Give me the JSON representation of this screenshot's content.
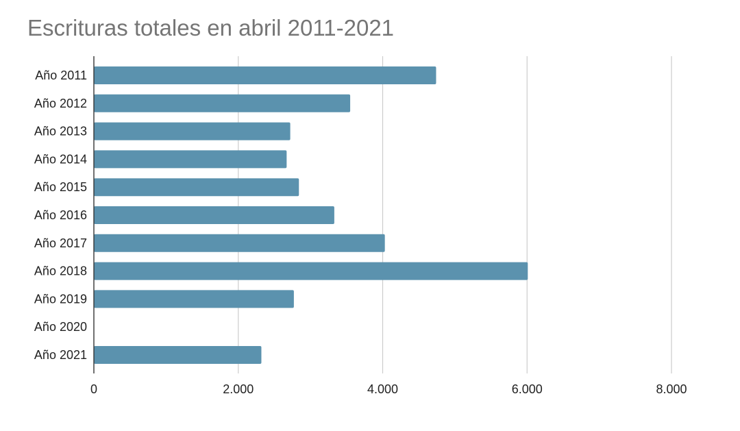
{
  "chart_data": {
    "type": "bar",
    "orientation": "horizontal",
    "title": "Escrituras totales en abril 2011-2021",
    "xlabel": "",
    "ylabel": "",
    "categories": [
      "Año 2011",
      "Año 2012",
      "Año 2013",
      "Año 2014",
      "Año 2015",
      "Año 2016",
      "Año 2017",
      "Año 2018",
      "Año 2019",
      "Año 2020",
      "Año 2021"
    ],
    "values": [
      4740,
      3550,
      2720,
      2670,
      2840,
      3330,
      4030,
      6010,
      2770,
      0,
      2320
    ],
    "xlim": [
      0,
      8000
    ],
    "x_ticks": [
      0,
      2000,
      4000,
      6000,
      8000
    ],
    "x_tick_labels": [
      "0",
      "2.000",
      "4.000",
      "6.000",
      "8.000"
    ],
    "grid": "vertical",
    "legend": "none",
    "colors": {
      "bar": "#5b92ae",
      "grid": "#cccccc",
      "axis": "#333333",
      "title": "#757575",
      "label": "#222222"
    }
  }
}
